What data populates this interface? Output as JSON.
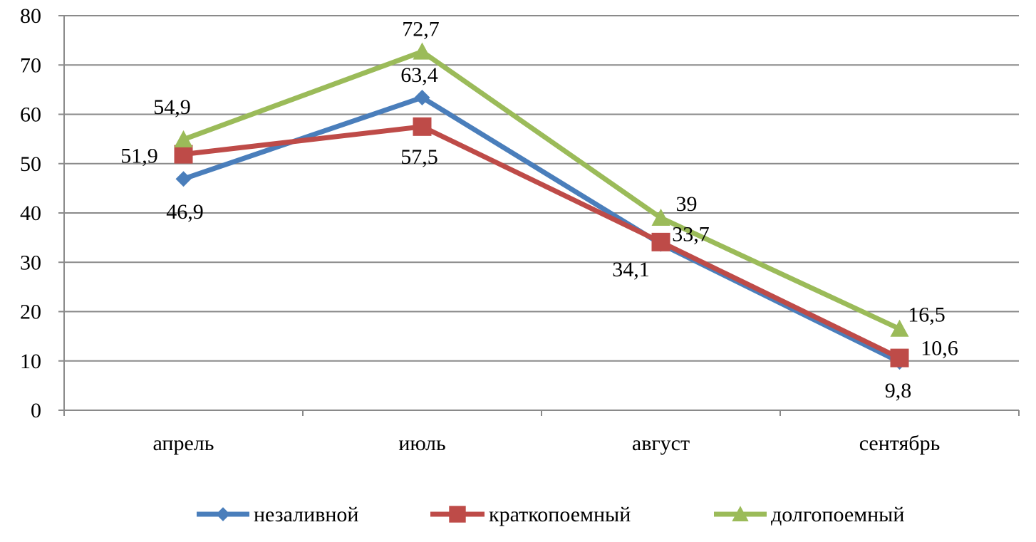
{
  "chart_data": {
    "type": "line",
    "title": "",
    "xlabel": "",
    "ylabel": "",
    "categories": [
      "апрель",
      "июль",
      "август",
      "сентябрь"
    ],
    "ylim": [
      0,
      80
    ],
    "yticks": [
      0,
      10,
      20,
      30,
      40,
      50,
      60,
      70,
      80
    ],
    "grid": true,
    "legend_position": "bottom",
    "series": [
      {
        "name": "незаливной",
        "color": "#4a7ebb",
        "marker": "diamond",
        "values": [
          46.9,
          63.4,
          33.7,
          9.8
        ],
        "labels": [
          "46,9",
          "63,4",
          "33,7",
          "9,8"
        ]
      },
      {
        "name": "краткопоемный",
        "color": "#be4b48",
        "marker": "square",
        "values": [
          51.9,
          57.5,
          34.1,
          10.6
        ],
        "labels": [
          "51,9",
          "57,5",
          "34,1",
          "10,6"
        ]
      },
      {
        "name": "долгопоемный",
        "color": "#9bbb59",
        "marker": "triangle",
        "values": [
          54.9,
          72.7,
          39,
          16.5
        ],
        "labels": [
          "54,9",
          "72,7",
          "39",
          "16,5"
        ]
      }
    ]
  }
}
